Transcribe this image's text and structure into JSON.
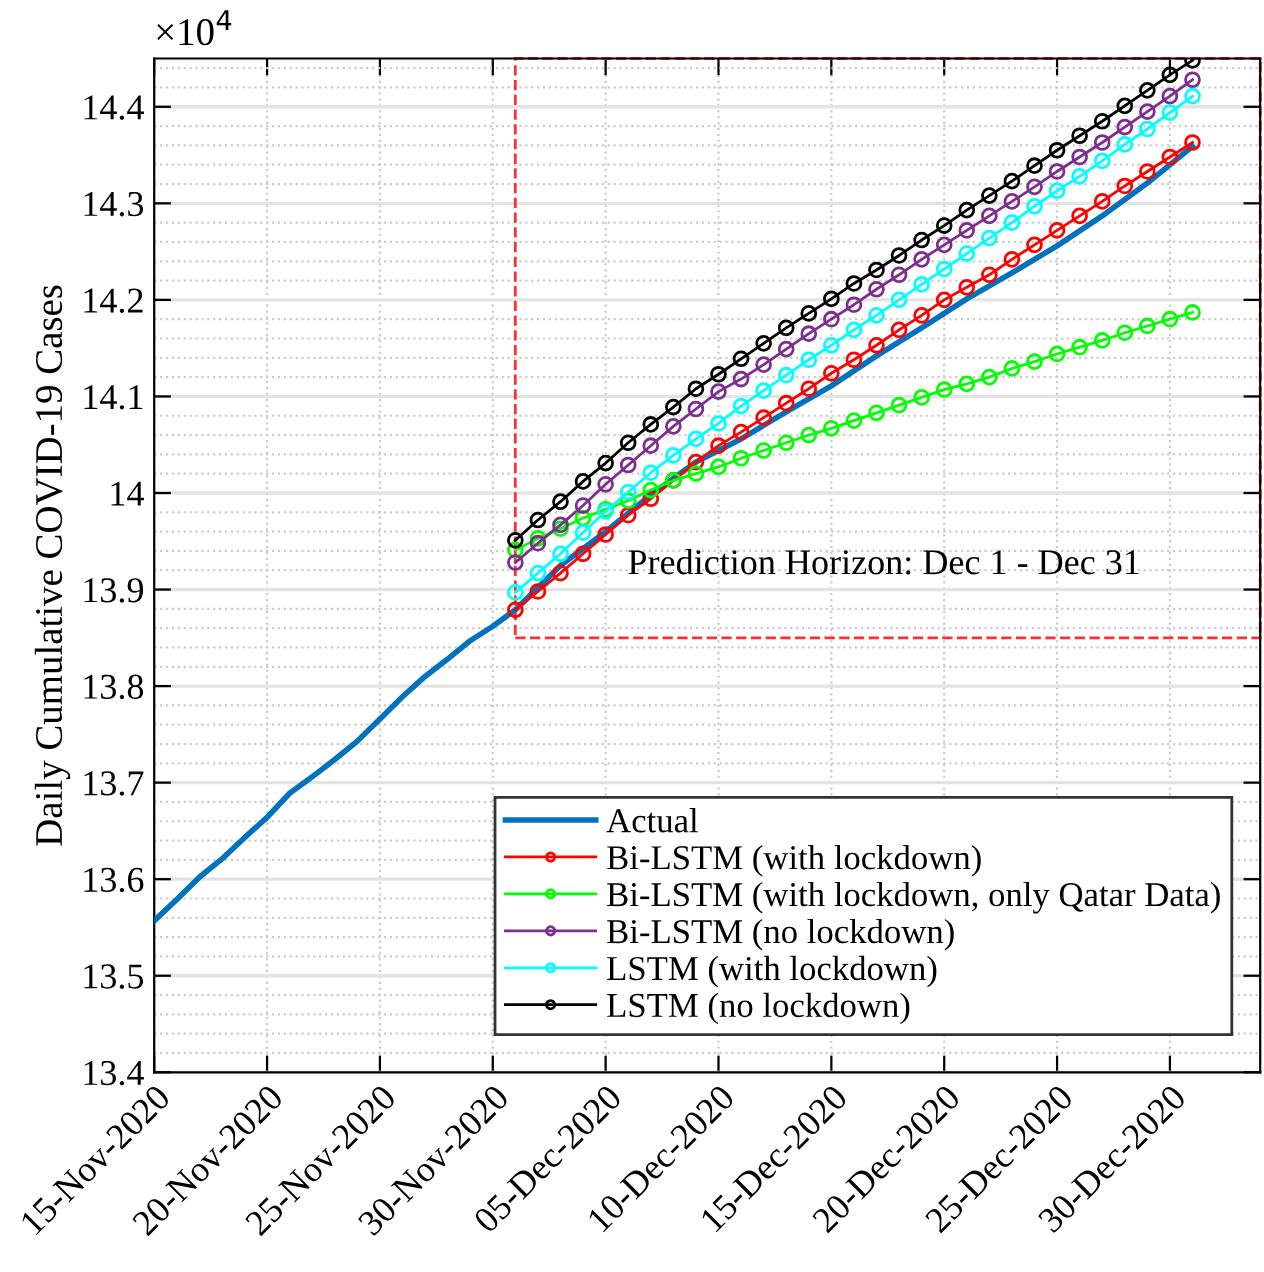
{
  "chart_data": {
    "type": "line",
    "ylabel": "Daily Cumulative COVID-19 Cases",
    "annotations": [
      "×10$^{4}$",
      "Prediction Horizon: Dec 1 - Dec 31"
    ],
    "xlim": [
      "2020-11-15",
      "2021-01-03"
    ],
    "xticks": [
      {
        "value": "2020-11-15",
        "label": "15-Nov-2020"
      },
      {
        "value": "2020-11-20",
        "label": "20-Nov-2020"
      },
      {
        "value": "2020-11-25",
        "label": "25-Nov-2020"
      },
      {
        "value": "2020-11-30",
        "label": "30-Nov-2020"
      },
      {
        "value": "2020-12-05",
        "label": "05-Dec-2020"
      },
      {
        "value": "2020-12-10",
        "label": "10-Dec-2020"
      },
      {
        "value": "2020-12-15",
        "label": "15-Dec-2020"
      },
      {
        "value": "2020-12-20",
        "label": "20-Dec-2020"
      },
      {
        "value": "2020-12-25",
        "label": "25-Dec-2020"
      },
      {
        "value": "2020-12-30",
        "label": "30-Dec-2020"
      }
    ],
    "ylim": [
      13.4,
      14.45
    ],
    "yticks": [
      13.4,
      13.5,
      13.6,
      13.7,
      13.8,
      13.9,
      14,
      14.1,
      14.2,
      14.3,
      14.4
    ],
    "grid": true,
    "legend": "bottom right",
    "line_style": "solid",
    "series": [
      {
        "name": "Actual",
        "color": "#0072bd",
        "marker": "none",
        "x": [
          "2020-11-15",
          "2020-11-16",
          "2020-11-17",
          "2020-11-18",
          "2020-11-19",
          "2020-11-20",
          "2020-11-21",
          "2020-11-22",
          "2020-11-23",
          "2020-11-24",
          "2020-11-25",
          "2020-11-26",
          "2020-11-27",
          "2020-11-28",
          "2020-11-29",
          "2020-11-30",
          "2020-12-01",
          "2020-12-03",
          "2020-12-05",
          "2020-12-07",
          "2020-12-09",
          "2020-12-11",
          "2020-12-13",
          "2020-12-15",
          "2020-12-17",
          "2020-12-19",
          "2020-12-21",
          "2020-12-23",
          "2020-12-25",
          "2020-12-27",
          "2020-12-29",
          "2020-12-31"
        ],
        "values": [
          13.557,
          13.579,
          13.602,
          13.621,
          13.643,
          13.664,
          13.689,
          13.706,
          13.724,
          13.743,
          13.766,
          13.789,
          13.81,
          13.828,
          13.847,
          13.862,
          13.879,
          13.925,
          13.96,
          13.998,
          14.032,
          14.056,
          14.084,
          14.111,
          14.142,
          14.171,
          14.201,
          14.228,
          14.256,
          14.287,
          14.321,
          14.359
        ]
      },
      {
        "name": "Bi-LSTM (with lockdown)",
        "color": "#ff0000",
        "marker": "circle",
        "values": [
          13.879,
          13.898,
          13.917,
          13.937,
          13.957,
          13.977,
          13.994,
          14.013,
          14.032,
          14.049,
          14.063,
          14.078,
          14.093,
          14.108,
          14.124,
          14.138,
          14.153,
          14.169,
          14.184,
          14.2,
          14.213,
          14.226,
          14.242,
          14.257,
          14.272,
          14.287,
          14.302,
          14.318,
          14.333,
          14.348,
          14.363
        ]
      },
      {
        "name": "Bi-LSTM (with lockdown, only Qatar Data)",
        "color": "#00ff00",
        "marker": "circle",
        "values": [
          13.941,
          13.953,
          13.963,
          13.974,
          13.983,
          13.992,
          14.003,
          14.013,
          14.02,
          14.027,
          14.036,
          14.044,
          14.052,
          14.06,
          14.067,
          14.075,
          14.083,
          14.091,
          14.099,
          14.107,
          14.113,
          14.12,
          14.129,
          14.136,
          14.144,
          14.151,
          14.158,
          14.166,
          14.173,
          14.18,
          14.187
        ]
      },
      {
        "name": "Bi-LSTM (no lockdown)",
        "color": "#7e2f8e",
        "marker": "circle",
        "values": [
          13.928,
          13.948,
          13.967,
          13.987,
          14.009,
          14.029,
          14.049,
          14.069,
          14.087,
          14.105,
          14.118,
          14.133,
          14.149,
          14.165,
          14.18,
          14.195,
          14.211,
          14.226,
          14.242,
          14.257,
          14.272,
          14.287,
          14.302,
          14.317,
          14.333,
          14.348,
          14.363,
          14.379,
          14.395,
          14.411,
          14.428
        ]
      },
      {
        "name": "LSTM (with lockdown)",
        "color": "#00ffff",
        "marker": "circle",
        "values": [
          13.897,
          13.917,
          13.937,
          13.959,
          13.981,
          14.001,
          14.021,
          14.039,
          14.056,
          14.072,
          14.09,
          14.106,
          14.122,
          14.138,
          14.153,
          14.169,
          14.184,
          14.2,
          14.216,
          14.232,
          14.248,
          14.264,
          14.28,
          14.297,
          14.313,
          14.328,
          14.344,
          14.361,
          14.377,
          14.394,
          14.411
        ]
      },
      {
        "name": "LSTM (no lockdown)",
        "color": "#000000",
        "marker": "circle",
        "values": [
          13.951,
          13.972,
          13.991,
          14.012,
          14.031,
          14.052,
          14.071,
          14.089,
          14.108,
          14.123,
          14.139,
          14.155,
          14.171,
          14.186,
          14.201,
          14.217,
          14.231,
          14.246,
          14.262,
          14.277,
          14.293,
          14.308,
          14.323,
          14.339,
          14.355,
          14.37,
          14.385,
          14.401,
          14.417,
          14.433,
          14.448
        ]
      }
    ],
    "x": [
      "2020-12-01",
      "2020-12-02",
      "2020-12-03",
      "2020-12-04",
      "2020-12-05",
      "2020-12-06",
      "2020-12-07",
      "2020-12-08",
      "2020-12-09",
      "2020-12-10",
      "2020-12-11",
      "2020-12-12",
      "2020-12-13",
      "2020-12-14",
      "2020-12-15",
      "2020-12-16",
      "2020-12-17",
      "2020-12-18",
      "2020-12-19",
      "2020-12-20",
      "2020-12-21",
      "2020-12-22",
      "2020-12-23",
      "2020-12-24",
      "2020-12-25",
      "2020-12-26",
      "2020-12-27",
      "2020-12-28",
      "2020-12-29",
      "2020-12-30",
      "2020-12-31"
    ]
  }
}
